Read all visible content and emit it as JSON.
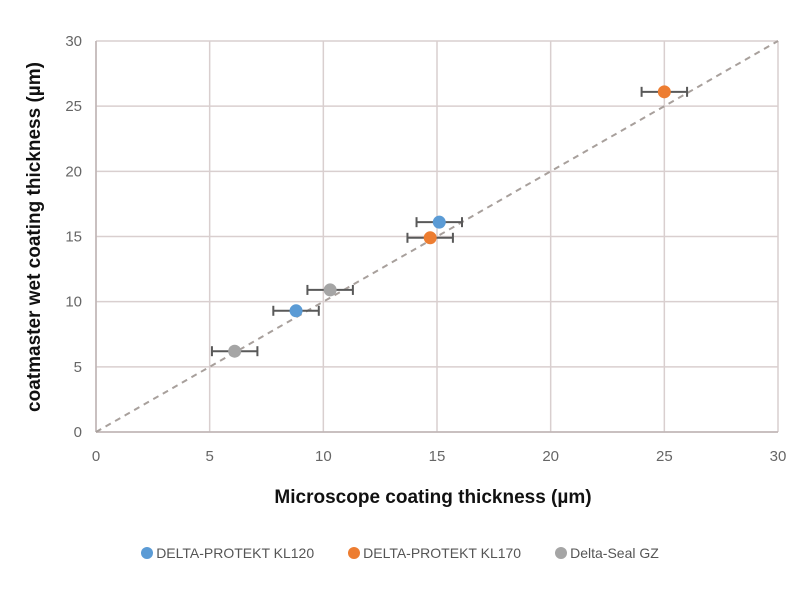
{
  "chart_data": {
    "type": "scatter",
    "title": "",
    "xlabel": "Microscope coating thickness (µm)",
    "ylabel": "coatmaster wet coating thickness (µm)",
    "xlim": [
      0,
      30
    ],
    "ylim": [
      0,
      30
    ],
    "xticks": [
      0,
      5,
      10,
      15,
      20,
      25,
      30
    ],
    "yticks": [
      0,
      5,
      10,
      15,
      20,
      25,
      30
    ],
    "grid": true,
    "legend_position": "bottom",
    "reference_line": {
      "name": "y = x",
      "style": "dashed",
      "color": "#a8a09c",
      "from": [
        0,
        0
      ],
      "to": [
        30,
        30
      ]
    },
    "series": [
      {
        "name": "DELTA-PROTEKT KL120",
        "color": "#5b9bd5",
        "points": [
          {
            "x": 8.8,
            "y": 9.3,
            "xerr": 1.0
          },
          {
            "x": 15.1,
            "y": 16.1,
            "xerr": 1.0
          }
        ]
      },
      {
        "name": "DELTA-PROTEKT KL170",
        "color": "#ed7d31",
        "points": [
          {
            "x": 14.7,
            "y": 14.9,
            "xerr": 1.0
          },
          {
            "x": 25.0,
            "y": 26.1,
            "xerr": 1.0
          }
        ]
      },
      {
        "name": "Delta-Seal GZ",
        "color": "#a5a5a5",
        "points": [
          {
            "x": 6.1,
            "y": 6.2,
            "xerr": 1.0
          },
          {
            "x": 10.3,
            "y": 10.9,
            "xerr": 1.0
          }
        ]
      }
    ]
  }
}
